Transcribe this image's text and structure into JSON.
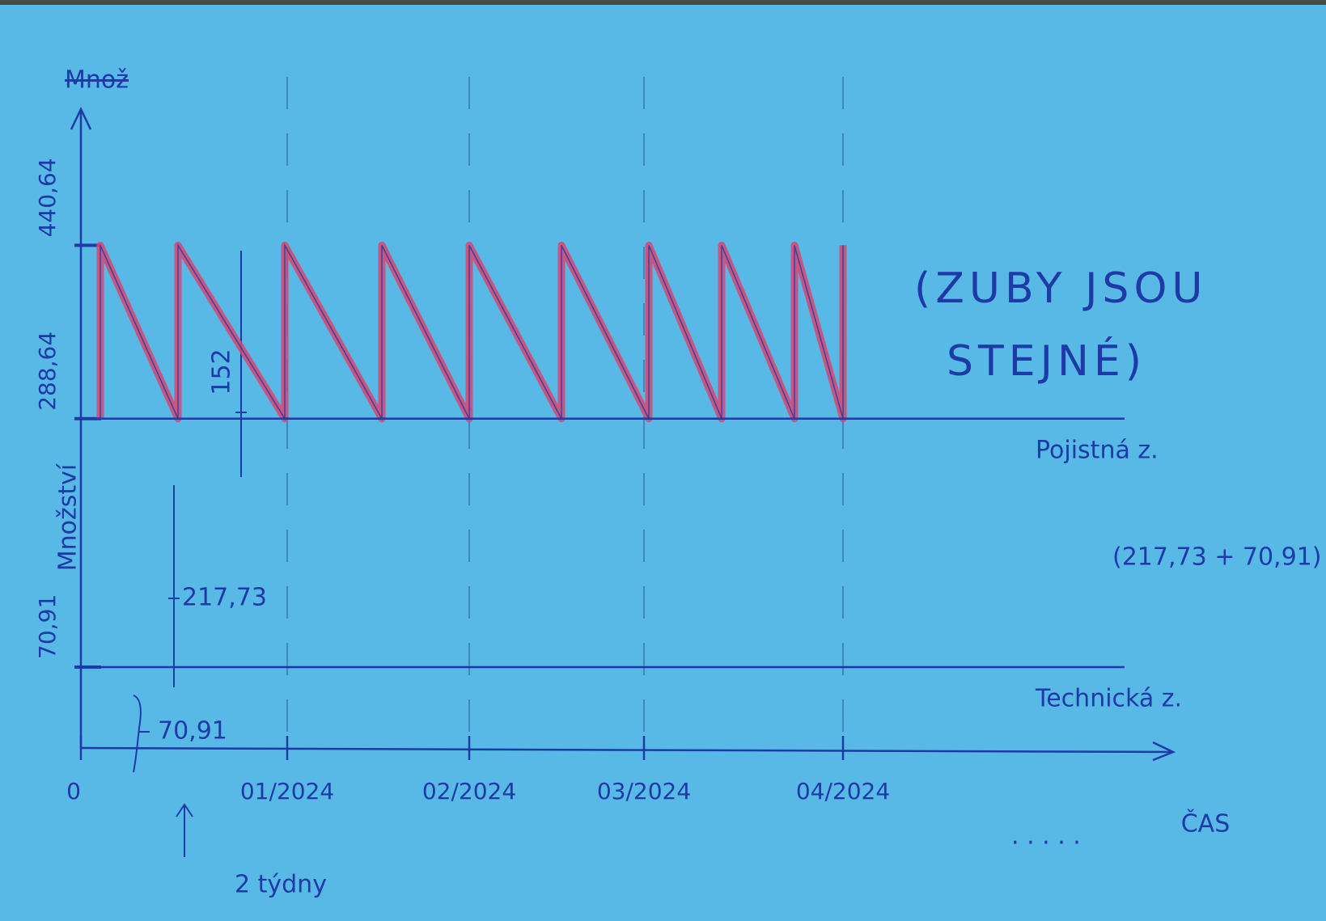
{
  "chart_data": {
    "type": "line",
    "y_label": "Množství",
    "x_label": "ČAS",
    "xlim": [
      0,
      22.5
    ],
    "ylim": [
      0,
      560
    ],
    "xticks": [
      {
        "value": 0,
        "label": "0"
      },
      {
        "value": 4.25,
        "label": "01/2024"
      },
      {
        "value": 8,
        "label": "02/2024"
      },
      {
        "value": 11.6,
        "label": "03/2024"
      },
      {
        "value": 15.7,
        "label": "04/2024"
      }
    ],
    "yticks": [
      {
        "value": 70.91,
        "label": "70,91"
      },
      {
        "value": 288.64,
        "label": "288,64"
      },
      {
        "value": 440.64,
        "label": "440,64"
      }
    ],
    "grid": true,
    "series": [
      {
        "color": "#d8456e",
        "x": [
          0.4,
          0.4,
          2.0,
          2.0,
          4.2,
          4.2,
          6.2,
          6.2,
          8.0,
          8.0,
          9.9,
          9.9,
          11.7,
          11.7,
          13.2,
          13.2,
          14.7,
          14.7,
          15.7,
          15.7
        ],
        "values": [
          288.64,
          440.64,
          288.64,
          440.64,
          288.64,
          440.64,
          288.64,
          440.64,
          288.64,
          440.64,
          288.64,
          440.64,
          288.64,
          440.64,
          288.64,
          440.64,
          288.64,
          440.64,
          288.64,
          440.64
        ]
      },
      {
        "name": "Pojistná z.",
        "color": "#1d3aa6",
        "x": [
          0.3,
          21.5
        ],
        "values": [
          288.64,
          288.64
        ]
      },
      {
        "name": "Technická z.",
        "color": "#1d3aa6",
        "x": [
          0,
          21.5
        ],
        "values": [
          70.91,
          70.91
        ]
      }
    ],
    "annotations": {
      "crossed": "Množ",
      "note_line1": "(ZUBY JSOU",
      "note_line2": "STEJNÉ)",
      "safety_sum": "(217,73 + 70,91)",
      "span_safety": "217,73",
      "span_technical": "70,91",
      "tooth_height": "152",
      "period": "2 týdny",
      "more": ". . . . ."
    }
  }
}
